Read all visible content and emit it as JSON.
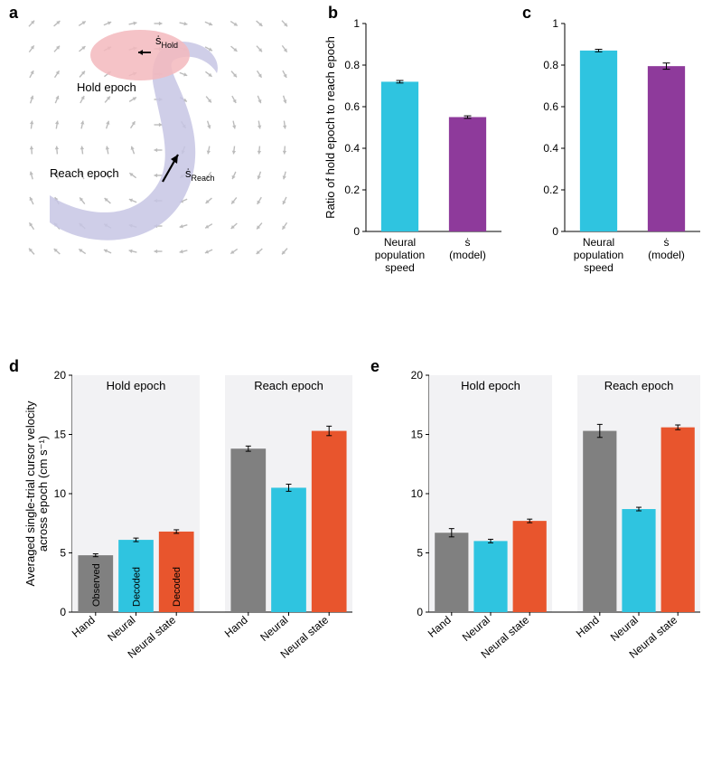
{
  "colors": {
    "cyan": "#2fc4e0",
    "purple": "#8e3a9b",
    "gray": "#808080",
    "orange": "#e8552d",
    "hold_blob": "#f3b8bd",
    "reach_blob": "#c7c5e4",
    "arrow_field": "#bcbcbc",
    "epoch_bg": "#f2f2f4",
    "axis": "#000000",
    "error_bar": "#000000"
  },
  "panel_a": {
    "label": "a",
    "hold_label": "Hold epoch",
    "reach_label": "Reach epoch",
    "s_hold": "ṡ",
    "s_hold_sub": "Hold",
    "s_reach": "ṡ",
    "s_reach_sub": "Reach"
  },
  "panel_b": {
    "label": "b",
    "y_title": "Ratio of hold epoch to reach epoch",
    "ylim": [
      0,
      1.0
    ],
    "yticks": [
      0,
      0.2,
      0.4,
      0.6,
      0.8,
      1.0
    ],
    "ytick_labels": [
      "0",
      "0.2",
      "0.4",
      "0.6",
      "0.8",
      "1"
    ],
    "categories": [
      "Neural\npopulation\nspeed",
      "ṡ\n(model)"
    ],
    "values": [
      0.72,
      0.55
    ],
    "errors": [
      0.006,
      0.006
    ],
    "bar_colors": [
      "#2fc4e0",
      "#8e3a9b"
    ],
    "bar_width": 0.55
  },
  "panel_c": {
    "label": "c",
    "ylim": [
      0,
      1.0
    ],
    "yticks": [
      0,
      0.2,
      0.4,
      0.6,
      0.8,
      1.0
    ],
    "categories": [
      "Neural\npopulation\nspeed",
      "ṡ\n(model)"
    ],
    "values": [
      0.87,
      0.795
    ],
    "errors": [
      0.006,
      0.015
    ],
    "bar_colors": [
      "#2fc4e0",
      "#8e3a9b"
    ],
    "bar_width": 0.55
  },
  "panel_d": {
    "label": "d",
    "y_title": "Averaged single-trial cursor velocity\nacross epoch (cm s⁻¹)",
    "ylim": [
      0,
      20
    ],
    "yticks": [
      0,
      5,
      10,
      15,
      20
    ],
    "ytick_labels": [
      "0",
      "5",
      "10",
      "15",
      "20"
    ],
    "groups": [
      {
        "name": "Hold epoch",
        "values": [
          4.8,
          6.1,
          6.8
        ],
        "errors": [
          0.12,
          0.15,
          0.15
        ]
      },
      {
        "name": "Reach epoch",
        "values": [
          13.8,
          10.5,
          15.3
        ],
        "errors": [
          0.22,
          0.3,
          0.4
        ]
      }
    ],
    "bar_colors": [
      "#808080",
      "#2fc4e0",
      "#e8552d"
    ],
    "bar_inner_labels": [
      "Observed",
      "Decoded",
      "Decoded"
    ],
    "categories": [
      "Hand",
      "Neural",
      "Neural state"
    ]
  },
  "panel_e": {
    "label": "e",
    "ylim": [
      0,
      20
    ],
    "yticks": [
      0,
      5,
      10,
      15,
      20
    ],
    "groups": [
      {
        "name": "Hold epoch",
        "values": [
          6.7,
          6.0,
          7.7
        ],
        "errors": [
          0.35,
          0.15,
          0.15
        ]
      },
      {
        "name": "Reach epoch",
        "values": [
          15.3,
          8.7,
          15.6
        ],
        "errors": [
          0.55,
          0.15,
          0.2
        ]
      }
    ],
    "bar_colors": [
      "#808080",
      "#2fc4e0",
      "#e8552d"
    ],
    "categories": [
      "Hand",
      "Neural",
      "Neural state"
    ]
  }
}
